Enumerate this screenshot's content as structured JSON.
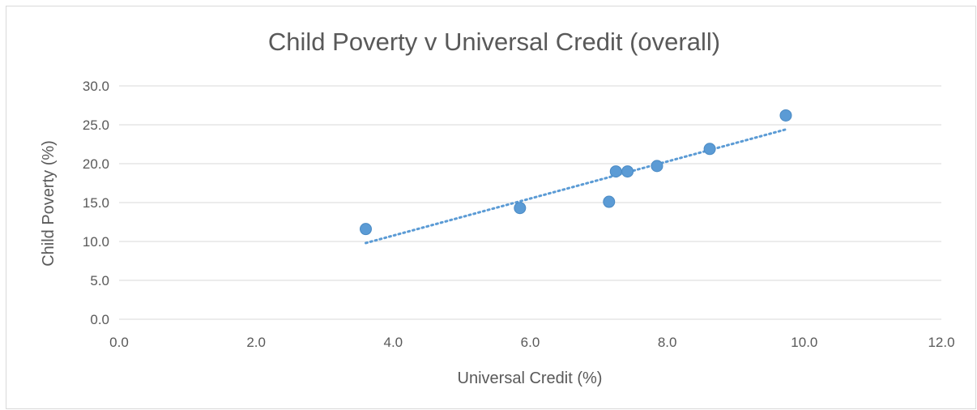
{
  "chart_data": {
    "type": "scatter",
    "title": "Child Poverty v Universal Credit (overall)",
    "xlabel": "Universal Credit (%)",
    "ylabel": "Child Poverty (%)",
    "xlim": [
      0,
      12
    ],
    "ylim": [
      0,
      30
    ],
    "x_ticks": [
      0,
      2,
      4,
      6,
      8,
      10,
      12
    ],
    "y_ticks": [
      0,
      5,
      10,
      15,
      20,
      25,
      30
    ],
    "x_tick_labels": [
      "0.0",
      "2.0",
      "4.0",
      "6.0",
      "8.0",
      "10.0",
      "12.0"
    ],
    "y_tick_labels": [
      "0.0",
      "5.0",
      "10.0",
      "15.0",
      "20.0",
      "25.0",
      "30.0"
    ],
    "grid": true,
    "points": [
      {
        "x": 3.6,
        "y": 11.6
      },
      {
        "x": 5.85,
        "y": 14.3
      },
      {
        "x": 7.15,
        "y": 15.1
      },
      {
        "x": 7.25,
        "y": 19.0
      },
      {
        "x": 7.42,
        "y": 19.0
      },
      {
        "x": 7.85,
        "y": 19.7
      },
      {
        "x": 8.62,
        "y": 21.9
      },
      {
        "x": 9.73,
        "y": 26.2
      }
    ],
    "trendline": {
      "type": "linear",
      "x_start": 3.6,
      "y_start": 9.8,
      "x_end": 9.73,
      "y_end": 24.4
    },
    "colors": {
      "points": "#5b9bd5",
      "trendline": "#5b9bd5",
      "grid": "#d9d9d9",
      "text": "#595959"
    }
  }
}
